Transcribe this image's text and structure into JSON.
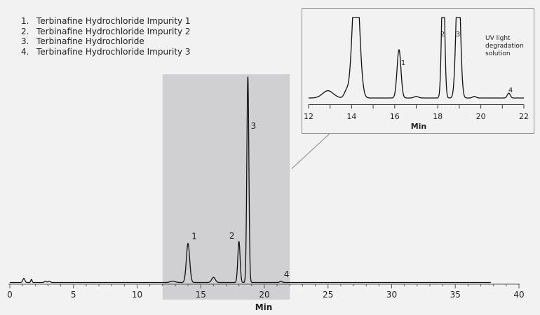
{
  "legend": [
    {
      "num": "1.",
      "label": "Terbinafine Hydrochloride Impurity 1"
    },
    {
      "num": "2.",
      "label": "Terbinafine Hydrochloride Impurity 2"
    },
    {
      "num": "3.",
      "label": "Terbinafine Hydrochloride"
    },
    {
      "num": "4.",
      "label": "Terbinafine Hydrochloride Impurity 3"
    }
  ],
  "colors": {
    "background": "#f2f2f2",
    "trace": "#111111",
    "highlight": "#d0d0d2",
    "inset_border": "#8a8a8a"
  },
  "chart_data": [
    {
      "type": "line",
      "name": "main-chromatogram",
      "xlabel": "Min",
      "ylabel": "",
      "xlim": [
        0,
        40
      ],
      "x_ticks": [
        0,
        5,
        10,
        15,
        20,
        25,
        30,
        35,
        40
      ],
      "grid": false,
      "highlight_range": [
        12,
        22
      ],
      "baseline_extent": [
        0,
        37.8
      ],
      "peaks": [
        {
          "label": "",
          "rt": 1.1,
          "height": 0.02,
          "width": 0.08
        },
        {
          "label": "",
          "rt": 1.7,
          "height": 0.015,
          "width": 0.05
        },
        {
          "label": "",
          "rt": 2.8,
          "height": 0.006,
          "width": 0.08
        },
        {
          "label": "",
          "rt": 3.1,
          "height": 0.006,
          "width": 0.08
        },
        {
          "label": "",
          "rt": 12.8,
          "height": 0.006,
          "width": 0.2
        },
        {
          "label": "1",
          "rt": 14.0,
          "height": 0.19,
          "width": 0.13
        },
        {
          "label": "",
          "rt": 16.0,
          "height": 0.025,
          "width": 0.14
        },
        {
          "label": "2",
          "rt": 18.0,
          "height": 0.2,
          "width": 0.09
        },
        {
          "label": "3",
          "rt": 18.7,
          "height": 1.0,
          "width": 0.08
        },
        {
          "label": "4",
          "rt": 21.3,
          "height": 0.005,
          "width": 0.1
        }
      ]
    },
    {
      "type": "line",
      "name": "inset-chromatogram",
      "xlabel": "Min",
      "xlim": [
        12,
        22
      ],
      "x_ticks": [
        12,
        14,
        16,
        18,
        20,
        22
      ],
      "annotation": "UV light\ndegradation\nsolution",
      "clip_level": 1.0,
      "peaks": [
        {
          "label": "",
          "rt": 12.9,
          "height": 0.09,
          "width": 0.25
        },
        {
          "label": "",
          "rt": 13.75,
          "height": 0.08,
          "width": 0.1
        },
        {
          "label": "",
          "rt": 14.2,
          "height": 1.6,
          "width": 0.16
        },
        {
          "label": "1",
          "rt": 16.2,
          "height": 0.6,
          "width": 0.09
        },
        {
          "label": "",
          "rt": 17.0,
          "height": 0.02,
          "width": 0.1
        },
        {
          "label": "2",
          "rt": 18.25,
          "height": 1.6,
          "width": 0.07
        },
        {
          "label": "3",
          "rt": 18.95,
          "height": 1.6,
          "width": 0.1
        },
        {
          "label": "",
          "rt": 19.7,
          "height": 0.02,
          "width": 0.08
        },
        {
          "label": "4",
          "rt": 21.3,
          "height": 0.06,
          "width": 0.07
        }
      ]
    }
  ]
}
